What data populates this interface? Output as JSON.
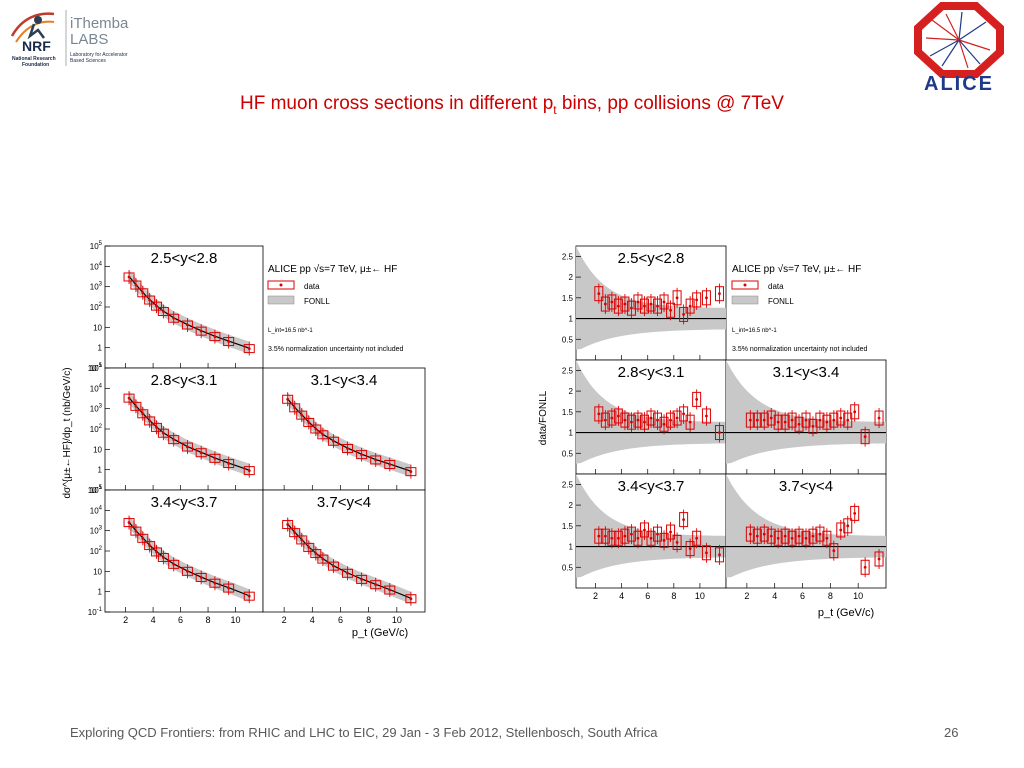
{
  "header": {
    "nrf": {
      "badge": "NRF",
      "line1": "National Research",
      "line2": "Foundation"
    },
    "ithemba": {
      "name1": "iThemba",
      "name2": "LABS",
      "line1": "Laboratory for Accelerator",
      "line2": "Based Sciences"
    },
    "alice_label": "ALICE"
  },
  "slide": {
    "title_pre": "HF muon cross sections in different p",
    "title_sub": "t",
    "title_post": " bins, pp collisions @ 7TeV"
  },
  "footer": {
    "text": "Exploring QCD Frontiers: from RHIC and LHC to EIC, 29 Jan - 3 Feb 2012, Stellenbosch, South Africa",
    "page": "26"
  },
  "colors": {
    "data": "#dd0000",
    "fonll_band": "#c8c8c8",
    "title": "#cc0000",
    "footer": "#595959"
  },
  "chart_data": [
    {
      "type": "scatter",
      "ylabel": "dσ^{μ±←HF}/dp_t (nb/GeV/c)",
      "xlabel": "p_t (GeV/c)",
      "x_ticks": [
        "2",
        "4",
        "6",
        "8",
        "10"
      ],
      "y_ticks": [
        "10^5",
        "10^4",
        "10^3",
        "10^2",
        "10",
        "1",
        "10^-1"
      ],
      "ylim": [
        0.1,
        100000
      ],
      "xlim": [
        0.5,
        12
      ],
      "legend": {
        "header": "ALICE pp √s=7 TeV, μ±← HF",
        "entries": [
          "data",
          "FONLL"
        ],
        "lumi": "L_int=16.5 nb^-1",
        "note": "3.5% normalization uncertainty not included"
      },
      "panels": [
        {
          "label": "2.5<y<2.8",
          "x": [
            2.25,
            2.75,
            3.25,
            3.75,
            4.25,
            4.75,
            5.5,
            6.5,
            7.5,
            8.5,
            9.5,
            11
          ],
          "y": [
            3000,
            1200,
            500,
            220,
            110,
            60,
            28,
            13,
            6.5,
            3.5,
            2.0,
            0.9
          ]
        },
        {
          "label": "2.8<y<3.1",
          "x": [
            2.25,
            2.75,
            3.25,
            3.75,
            4.25,
            4.75,
            5.5,
            6.5,
            7.5,
            8.5,
            9.5,
            11
          ],
          "y": [
            3300,
            1300,
            560,
            250,
            120,
            62,
            30,
            13,
            6.8,
            3.6,
            2.0,
            0.9
          ]
        },
        {
          "label": "3.1<y<3.4",
          "x": [
            2.25,
            2.75,
            3.25,
            3.75,
            4.25,
            4.75,
            5.5,
            6.5,
            7.5,
            8.5,
            9.5,
            11
          ],
          "y": [
            2900,
            1100,
            480,
            210,
            100,
            52,
            25,
            11,
            5.5,
            3.0,
            1.8,
            0.8
          ]
        },
        {
          "label": "3.4<y<3.7",
          "x": [
            2.25,
            2.75,
            3.25,
            3.75,
            4.25,
            4.75,
            5.5,
            6.5,
            7.5,
            8.5,
            9.5,
            11
          ],
          "y": [
            2500,
            950,
            420,
            185,
            90,
            48,
            22,
            10,
            5.0,
            2.6,
            1.5,
            0.6
          ]
        },
        {
          "label": "3.7<y<4",
          "x": [
            2.25,
            2.75,
            3.25,
            3.75,
            4.25,
            4.75,
            5.5,
            6.5,
            7.5,
            8.5,
            9.5,
            11
          ],
          "y": [
            2000,
            800,
            350,
            150,
            75,
            40,
            18,
            8,
            4,
            2.2,
            1.2,
            0.45
          ]
        }
      ]
    },
    {
      "type": "scatter",
      "ylabel": "data/FONLL",
      "xlabel": "p_t (GeV/c)",
      "x_ticks": [
        "2",
        "4",
        "6",
        "8",
        "10"
      ],
      "y_ticks": [
        "2.5",
        "2",
        "1.5",
        "1",
        "0.5"
      ],
      "ylim": [
        0,
        2.75
      ],
      "xlim": [
        0.5,
        12
      ],
      "legend": {
        "header": "ALICE pp √s=7 TeV, μ±← HF",
        "entries": [
          "data",
          "FONLL"
        ],
        "lumi": "L_int=16.5 nb^-1",
        "note": "3.5% normalization uncertainty not included"
      },
      "panels": [
        {
          "label": "2.5<y<2.8",
          "x": [
            2.25,
            2.75,
            3.25,
            3.75,
            4.25,
            4.75,
            5.25,
            5.75,
            6.25,
            6.75,
            7.25,
            7.75,
            8.25,
            8.75,
            9.25,
            9.75,
            10.5,
            11.5
          ],
          "y": [
            1.6,
            1.35,
            1.4,
            1.3,
            1.35,
            1.25,
            1.4,
            1.3,
            1.35,
            1.3,
            1.4,
            1.2,
            1.5,
            1.1,
            1.3,
            1.45,
            1.5,
            1.6
          ]
        },
        {
          "label": "2.8<y<3.1",
          "x": [
            2.25,
            2.75,
            3.25,
            3.75,
            4.25,
            4.75,
            5.25,
            5.75,
            6.25,
            6.75,
            7.25,
            7.75,
            8.25,
            8.75,
            9.25,
            9.75,
            10.5,
            11.5
          ],
          "y": [
            1.45,
            1.3,
            1.35,
            1.4,
            1.3,
            1.25,
            1.3,
            1.25,
            1.35,
            1.3,
            1.2,
            1.3,
            1.35,
            1.45,
            1.25,
            1.8,
            1.4,
            1.0
          ]
        },
        {
          "label": "3.1<y<3.4",
          "x": [
            2.25,
            2.75,
            3.25,
            3.75,
            4.25,
            4.75,
            5.25,
            5.75,
            6.25,
            6.75,
            7.25,
            7.75,
            8.25,
            8.75,
            9.25,
            9.75,
            10.5,
            11.5
          ],
          "y": [
            1.3,
            1.3,
            1.3,
            1.35,
            1.25,
            1.25,
            1.3,
            1.2,
            1.3,
            1.15,
            1.3,
            1.25,
            1.3,
            1.35,
            1.3,
            1.5,
            0.9,
            1.35
          ]
        },
        {
          "label": "3.4<y<3.7",
          "x": [
            2.25,
            2.75,
            3.25,
            3.75,
            4.25,
            4.75,
            5.25,
            5.75,
            6.25,
            6.75,
            7.25,
            7.75,
            8.25,
            8.75,
            9.25,
            9.75,
            10.5,
            11.5
          ],
          "y": [
            1.25,
            1.25,
            1.2,
            1.2,
            1.25,
            1.3,
            1.2,
            1.4,
            1.2,
            1.3,
            1.15,
            1.35,
            1.1,
            1.65,
            0.95,
            1.2,
            0.85,
            0.8
          ]
        },
        {
          "label": "3.7<y<4",
          "x": [
            2.25,
            2.75,
            3.25,
            3.75,
            4.25,
            4.75,
            5.25,
            5.75,
            6.25,
            6.75,
            7.25,
            7.75,
            8.25,
            8.75,
            9.25,
            9.75,
            10.5,
            11.5
          ],
          "y": [
            1.3,
            1.25,
            1.3,
            1.25,
            1.2,
            1.25,
            1.2,
            1.25,
            1.2,
            1.25,
            1.3,
            1.2,
            0.9,
            1.4,
            1.5,
            1.8,
            0.5,
            0.7
          ]
        }
      ]
    }
  ]
}
